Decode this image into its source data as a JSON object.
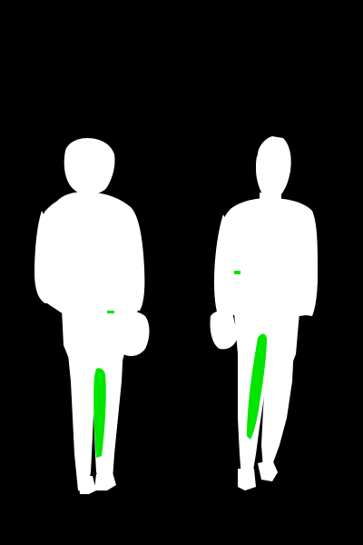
{
  "image": {
    "kind": "segmentation-mask",
    "background_color": "#000000",
    "foreground_color": "#ffffff",
    "accent_color": "#00e600"
  },
  "figures": [
    {
      "name": "left-figure",
      "mask_color": "#ffffff",
      "highlight_color": "#00e600"
    },
    {
      "name": "right-figure",
      "mask_color": "#ffffff",
      "highlight_color": "#00e600"
    }
  ]
}
